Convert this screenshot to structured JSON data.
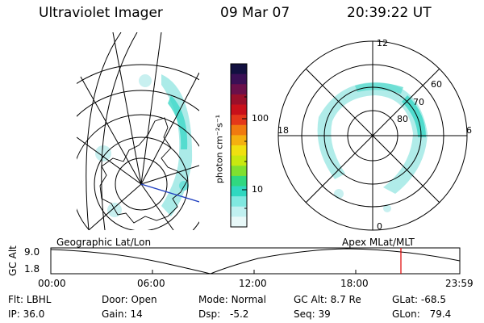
{
  "header": {
    "instrument": "Ultraviolet Imager",
    "date": "09 Mar 07",
    "time": "20:39:22 UT"
  },
  "colorbar": {
    "unit_label": "photon cm⁻²s⁻¹",
    "ticks": [
      "100",
      "10"
    ],
    "colors": [
      "#121040",
      "#3a0f55",
      "#6a0f4a",
      "#9a0f2a",
      "#c8101a",
      "#e4381a",
      "#f07a10",
      "#f4b010",
      "#f0e010",
      "#c8e810",
      "#80e030",
      "#30d880",
      "#30d8c0",
      "#80e8e0",
      "#c0f0f0",
      "#e8f8f8"
    ]
  },
  "left_map": {
    "label": "Geographic Lat/Lon"
  },
  "right_map": {
    "label": "Apex  MLat/MLT",
    "mlt_labels": {
      "top": "12",
      "left": "18",
      "right": "6",
      "bottom": "0"
    },
    "lat_labels": [
      "60",
      "70",
      "80"
    ]
  },
  "timeline": {
    "ylabel": "GC Alt",
    "ytick_top": "9.0",
    "ytick_bottom": "1.8",
    "xticks": [
      "00:00",
      "06:00",
      "12:00",
      "18:00",
      "23:59"
    ]
  },
  "info": {
    "flt_label": "Flt:",
    "flt": "LBHL",
    "ip_label": "IP:",
    "ip": "36.0",
    "door_label": "Door:",
    "door": "Open",
    "gain_label": "Gain:",
    "gain": "14",
    "mode_label": "Mode:",
    "mode": "Normal",
    "dsp_label": "Dsp:",
    "dsp": "-5.2",
    "gcalt_label": "GC Alt:",
    "gcalt": "8.7 Re",
    "seq_label": "Seq:",
    "seq": "39",
    "glat_label": "GLat:",
    "glat": "-68.5",
    "glon_label": "GLon:",
    "glon": "79.4"
  },
  "accent": {
    "marker": "#e00000"
  }
}
